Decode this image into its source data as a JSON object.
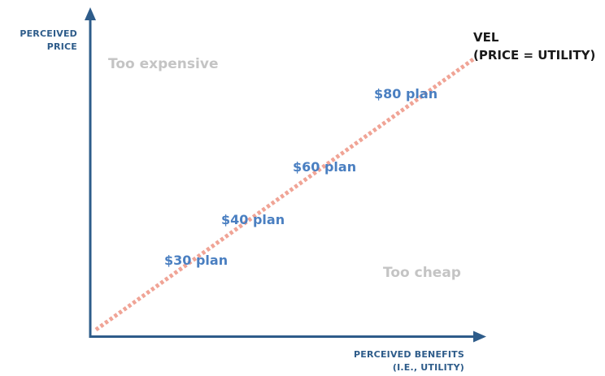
{
  "axes": {
    "y_label_line1": "PERCEIVED",
    "y_label_line2": "PRICE",
    "x_label_line1": "PERCEIVED BENEFITS",
    "x_label_line2": "(I.E., UTILITY)"
  },
  "regions": {
    "too_expensive": "Too expensive",
    "too_cheap": "Too cheap"
  },
  "vel": {
    "line1": "VEL",
    "line2": "(PRICE = UTILITY)"
  },
  "plans": [
    {
      "label": "$30 plan"
    },
    {
      "label": "$40 plan"
    },
    {
      "label": "$60 plan"
    },
    {
      "label": "$80 plan"
    }
  ],
  "colors": {
    "axis": "#2e5c8a",
    "vel_line": "#f0a496",
    "plan_text": "#4a7fc1",
    "region_text": "#c4c4c4",
    "vel_text": "#1a1a1a"
  }
}
